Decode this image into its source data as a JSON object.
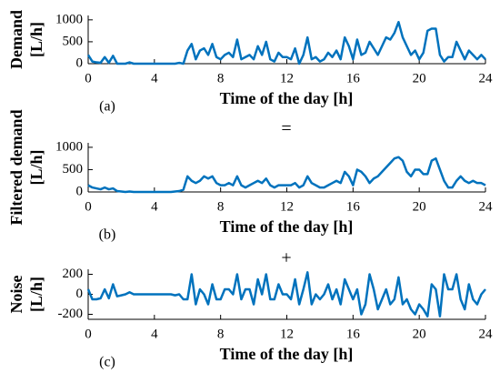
{
  "separators": [
    "=",
    "+"
  ],
  "chart_data": [
    {
      "type": "line",
      "ylabel": [
        "Demand",
        "[L/h]"
      ],
      "xlabel": "Time of the day [h]",
      "panel_label": "(a)",
      "x": [
        0,
        0.25,
        0.5,
        0.75,
        1,
        1.25,
        1.5,
        1.75,
        2,
        2.25,
        2.5,
        2.75,
        3,
        3.25,
        3.5,
        3.75,
        4,
        4.25,
        4.5,
        4.75,
        5,
        5.25,
        5.5,
        5.75,
        6,
        6.25,
        6.5,
        6.75,
        7,
        7.25,
        7.5,
        7.75,
        8,
        8.25,
        8.5,
        8.75,
        9,
        9.25,
        9.5,
        9.75,
        10,
        10.25,
        10.5,
        10.75,
        11,
        11.25,
        11.5,
        11.75,
        12,
        12.25,
        12.5,
        12.75,
        13,
        13.25,
        13.5,
        13.75,
        14,
        14.25,
        14.5,
        14.75,
        15,
        15.25,
        15.5,
        15.75,
        16,
        16.25,
        16.5,
        16.75,
        17,
        17.25,
        17.5,
        17.75,
        18,
        18.25,
        18.5,
        18.75,
        19,
        19.25,
        19.5,
        19.75,
        20,
        20.25,
        20.5,
        20.75,
        21,
        21.25,
        21.5,
        21.75,
        22,
        22.25,
        22.5,
        22.75,
        23,
        23.25,
        23.5,
        23.75,
        24
      ],
      "series": [
        {
          "color": "#0072bd",
          "values": [
            200,
            50,
            30,
            20,
            150,
            20,
            180,
            0,
            0,
            0,
            30,
            0,
            0,
            0,
            0,
            0,
            0,
            0,
            0,
            0,
            0,
            0,
            20,
            0,
            300,
            450,
            100,
            300,
            350,
            200,
            450,
            150,
            100,
            200,
            250,
            150,
            550,
            100,
            150,
            200,
            100,
            400,
            200,
            500,
            100,
            50,
            250,
            150,
            150,
            100,
            350,
            0,
            200,
            600,
            100,
            150,
            50,
            100,
            250,
            150,
            300,
            100,
            600,
            400,
            100,
            550,
            200,
            250,
            500,
            350,
            200,
            400,
            600,
            550,
            700,
            950,
            600,
            400,
            200,
            300,
            100,
            250,
            750,
            800,
            800,
            200,
            50,
            150,
            150,
            500,
            300,
            100,
            300,
            200,
            100,
            200,
            100
          ]
        }
      ],
      "xlim": [
        0,
        24
      ],
      "xticks": [
        0,
        4,
        8,
        12,
        16,
        20,
        24
      ],
      "ylim": [
        0,
        1100
      ],
      "yticks": [
        0,
        500,
        1000
      ]
    },
    {
      "type": "line",
      "ylabel": [
        "Filtered demand",
        "[L/h]"
      ],
      "xlabel": "Time of the day [h]",
      "panel_label": "(b)",
      "x": [
        0,
        0.25,
        0.5,
        0.75,
        1,
        1.25,
        1.5,
        1.75,
        2,
        2.25,
        2.5,
        2.75,
        3,
        3.25,
        3.5,
        3.75,
        4,
        4.25,
        4.5,
        4.75,
        5,
        5.25,
        5.5,
        5.75,
        6,
        6.25,
        6.5,
        6.75,
        7,
        7.25,
        7.5,
        7.75,
        8,
        8.25,
        8.5,
        8.75,
        9,
        9.25,
        9.5,
        9.75,
        10,
        10.25,
        10.5,
        10.75,
        11,
        11.25,
        11.5,
        11.75,
        12,
        12.25,
        12.5,
        12.75,
        13,
        13.25,
        13.5,
        13.75,
        14,
        14.25,
        14.5,
        14.75,
        15,
        15.25,
        15.5,
        15.75,
        16,
        16.25,
        16.5,
        16.75,
        17,
        17.25,
        17.5,
        17.75,
        18,
        18.25,
        18.5,
        18.75,
        19,
        19.25,
        19.5,
        19.75,
        20,
        20.25,
        20.5,
        20.75,
        21,
        21.25,
        21.5,
        21.75,
        22,
        22.25,
        22.5,
        22.75,
        23,
        23.25,
        23.5,
        23.75,
        24
      ],
      "series": [
        {
          "color": "#0072bd",
          "values": [
            150,
            100,
            80,
            60,
            100,
            60,
            80,
            20,
            10,
            0,
            10,
            0,
            0,
            0,
            0,
            0,
            0,
            0,
            0,
            0,
            0,
            10,
            20,
            50,
            350,
            250,
            200,
            250,
            350,
            300,
            350,
            200,
            150,
            150,
            200,
            150,
            350,
            150,
            100,
            150,
            200,
            250,
            200,
            300,
            150,
            100,
            150,
            150,
            150,
            150,
            200,
            100,
            150,
            350,
            200,
            150,
            100,
            100,
            150,
            200,
            250,
            200,
            450,
            350,
            150,
            500,
            450,
            350,
            200,
            300,
            350,
            450,
            550,
            650,
            750,
            780,
            700,
            450,
            350,
            500,
            500,
            400,
            400,
            700,
            750,
            500,
            250,
            100,
            100,
            250,
            350,
            250,
            200,
            250,
            200,
            200,
            150
          ]
        }
      ],
      "xlim": [
        0,
        24
      ],
      "xticks": [
        0,
        4,
        8,
        12,
        16,
        20,
        24
      ],
      "ylim": [
        0,
        1100
      ],
      "yticks": [
        0,
        500,
        1000
      ]
    },
    {
      "type": "line",
      "ylabel": [
        "Noise",
        "[L/h]"
      ],
      "xlabel": "Time of the day [h]",
      "panel_label": "(c)",
      "x": [
        0,
        0.25,
        0.5,
        0.75,
        1,
        1.25,
        1.5,
        1.75,
        2,
        2.25,
        2.5,
        2.75,
        3,
        3.25,
        3.5,
        3.75,
        4,
        4.25,
        4.5,
        4.75,
        5,
        5.25,
        5.5,
        5.75,
        6,
        6.25,
        6.5,
        6.75,
        7,
        7.25,
        7.5,
        7.75,
        8,
        8.25,
        8.5,
        8.75,
        9,
        9.25,
        9.5,
        9.75,
        10,
        10.25,
        10.5,
        10.75,
        11,
        11.25,
        11.5,
        11.75,
        12,
        12.25,
        12.5,
        12.75,
        13,
        13.25,
        13.5,
        13.75,
        14,
        14.25,
        14.5,
        14.75,
        15,
        15.25,
        15.5,
        15.75,
        16,
        16.25,
        16.5,
        16.75,
        17,
        17.25,
        17.5,
        17.75,
        18,
        18.25,
        18.5,
        18.75,
        19,
        19.25,
        19.5,
        19.75,
        20,
        20.25,
        20.5,
        20.75,
        21,
        21.25,
        21.5,
        21.75,
        22,
        22.25,
        22.5,
        22.75,
        23,
        23.25,
        23.5,
        23.75,
        24
      ],
      "series": [
        {
          "color": "#0072bd",
          "values": [
            50,
            -50,
            -50,
            -40,
            50,
            -40,
            100,
            -20,
            -10,
            0,
            20,
            0,
            0,
            0,
            0,
            0,
            0,
            0,
            0,
            0,
            0,
            -10,
            0,
            -50,
            -50,
            200,
            -100,
            50,
            0,
            -100,
            100,
            -50,
            -50,
            50,
            50,
            0,
            200,
            -50,
            50,
            50,
            -100,
            150,
            0,
            200,
            -50,
            -50,
            100,
            0,
            0,
            -50,
            150,
            -100,
            50,
            220,
            -100,
            0,
            -50,
            0,
            100,
            -50,
            50,
            -100,
            150,
            50,
            -50,
            50,
            -200,
            -100,
            200,
            50,
            -150,
            -50,
            50,
            -100,
            -50,
            170,
            -100,
            -50,
            -150,
            -200,
            -100,
            -150,
            -220,
            100,
            50,
            -220,
            200,
            50,
            50,
            200,
            -50,
            -150,
            100,
            -50,
            -100,
            0,
            50
          ]
        }
      ],
      "xlim": [
        0,
        24
      ],
      "xticks": [
        0,
        4,
        8,
        12,
        16,
        20,
        24
      ],
      "ylim": [
        -250,
        250
      ],
      "yticks": [
        -200,
        0,
        200
      ]
    }
  ]
}
